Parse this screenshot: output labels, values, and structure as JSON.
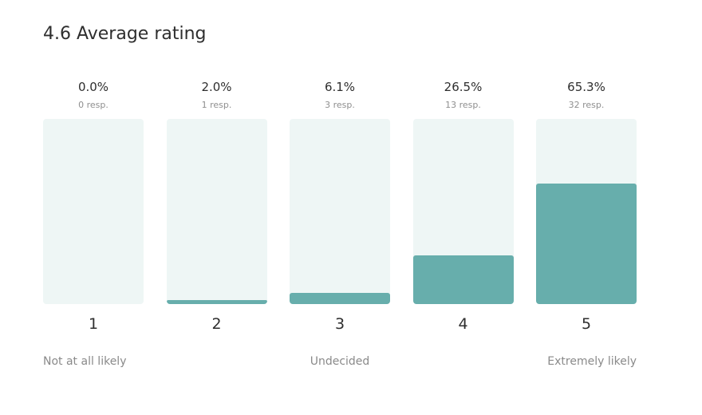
{
  "header": {
    "average_rating": "4.6 Average rating"
  },
  "chart_data": {
    "type": "bar",
    "title": "4.6 Average rating",
    "categories": [
      "1",
      "2",
      "3",
      "4",
      "5"
    ],
    "values": [
      0.0,
      2.0,
      6.1,
      26.5,
      65.3
    ],
    "unit": "%",
    "ylim": [
      0,
      100
    ],
    "bars": [
      {
        "rating": "1",
        "percent": 0.0,
        "percent_label": "0.0%",
        "responses_label": "0 resp."
      },
      {
        "rating": "2",
        "percent": 2.0,
        "percent_label": "2.0%",
        "responses_label": "1 resp."
      },
      {
        "rating": "3",
        "percent": 6.1,
        "percent_label": "6.1%",
        "responses_label": "3 resp."
      },
      {
        "rating": "4",
        "percent": 26.5,
        "percent_label": "26.5%",
        "responses_label": "13 resp."
      },
      {
        "rating": "5",
        "percent": 65.3,
        "percent_label": "65.3%",
        "responses_label": "32 resp."
      }
    ],
    "scale_labels": {
      "low": "Not at all likely",
      "mid": "Undecided",
      "high": "Extremely likely"
    },
    "colors": {
      "bar_fill": "#67aeac",
      "bar_track": "#eef6f5"
    },
    "grid": false
  }
}
